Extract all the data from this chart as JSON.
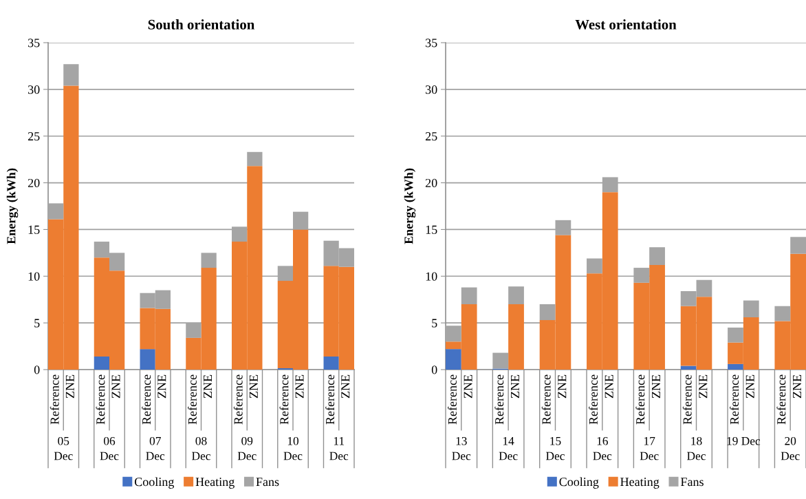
{
  "chart_data": [
    {
      "type": "bar",
      "stacked": true,
      "title": "South orientation",
      "ylabel": "Energy (kWh)",
      "ylim": [
        0,
        35
      ],
      "yticks": [
        0,
        5,
        10,
        15,
        20,
        25,
        30,
        35
      ],
      "grid": "y",
      "legend": "bottom",
      "categories": [
        "Reference",
        "ZNE",
        "Reference",
        "ZNE",
        "Reference",
        "ZNE",
        "Reference",
        "ZNE",
        "Reference",
        "ZNE",
        "Reference",
        "ZNE",
        "Reference",
        "ZNE"
      ],
      "annotations": [
        "05\nDec",
        "06\nDec",
        "07\nDec",
        "08\nDec",
        "09\nDec",
        "10\nDec",
        "11\nDec"
      ],
      "series": [
        {
          "name": "Cooling",
          "color": "#4472c4",
          "values": [
            0,
            0,
            1.4,
            0,
            2.2,
            0,
            0,
            0,
            0,
            0,
            0.15,
            0,
            1.4,
            0
          ]
        },
        {
          "name": "Heating",
          "color": "#ed7d31",
          "values": [
            16.1,
            30.4,
            10.6,
            10.6,
            4.4,
            6.5,
            3.4,
            10.9,
            13.7,
            21.8,
            9.35,
            15.0,
            9.7,
            11.0
          ]
        },
        {
          "name": "Fans",
          "color": "#a5a5a5",
          "values": [
            1.7,
            2.3,
            1.7,
            1.9,
            1.6,
            2.0,
            1.6,
            1.6,
            1.6,
            1.5,
            1.6,
            1.9,
            2.7,
            2.0
          ]
        }
      ]
    },
    {
      "type": "bar",
      "stacked": true,
      "title": "West orientation",
      "ylabel": "Energy (kWh)",
      "ylim": [
        0,
        35
      ],
      "yticks": [
        0,
        5,
        10,
        15,
        20,
        25,
        30,
        35
      ],
      "grid": "y",
      "legend": "bottom",
      "categories": [
        "Reference",
        "ZNE",
        "Reference",
        "ZNE",
        "Reference",
        "ZNE",
        "Reference",
        "ZNE",
        "Reference",
        "ZNE",
        "Reference",
        "ZNE",
        "Reference",
        "ZNE",
        "Reference",
        "ZNE"
      ],
      "annotations": [
        "13\nDec",
        "14\nDec",
        "15\nDec",
        "16\nDec",
        "17\nDec",
        "18\nDec",
        "19 Dec",
        "20\nDec"
      ],
      "series": [
        {
          "name": "Cooling",
          "color": "#4472c4",
          "values": [
            2.2,
            0,
            0.1,
            0,
            0,
            0,
            0,
            0,
            0,
            0,
            0.4,
            0,
            0.6,
            0,
            0,
            0
          ]
        },
        {
          "name": "Heating",
          "color": "#ed7d31",
          "values": [
            0.8,
            7.0,
            0,
            7.0,
            5.3,
            14.4,
            10.3,
            19.0,
            9.3,
            11.2,
            6.4,
            7.8,
            2.3,
            5.6,
            5.2,
            12.4
          ]
        },
        {
          "name": "Fans",
          "color": "#a5a5a5",
          "values": [
            1.7,
            1.8,
            1.7,
            1.9,
            1.7,
            1.6,
            1.6,
            1.6,
            1.6,
            1.9,
            1.6,
            1.8,
            1.6,
            1.8,
            1.6,
            1.8
          ]
        }
      ]
    }
  ]
}
